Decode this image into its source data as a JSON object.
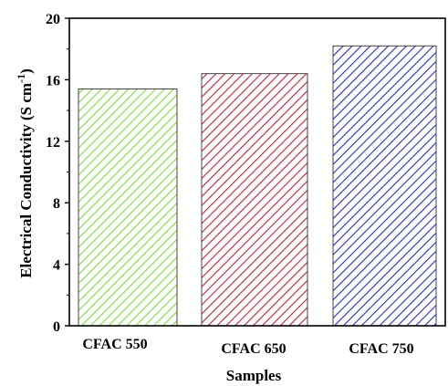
{
  "chart_data": {
    "type": "bar",
    "categories": [
      "CFAC 550",
      "CFAC 650",
      "CFAC 750"
    ],
    "values": [
      15.4,
      16.4,
      18.2
    ],
    "xlabel": "Samples",
    "ylabel": "Electrical Conductivity (S cm",
    "ylabel_sup": "-1",
    "ylabel_close": ")",
    "ylim": [
      0,
      20
    ],
    "yticks": [
      0,
      4,
      8,
      12,
      16,
      20
    ],
    "grid": false,
    "bar_fill": "hatched",
    "bar_colors": [
      "#7fdd3a",
      "#c41e3a",
      "#2a2ac8"
    ],
    "axis_color": "#000000"
  }
}
